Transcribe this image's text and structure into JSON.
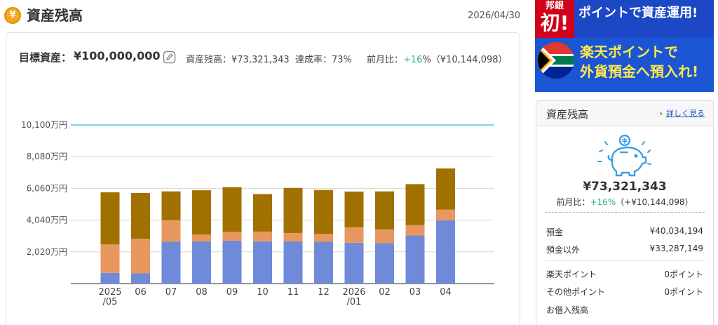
{
  "header": {
    "title": "資産残高",
    "date": "2026/04/30",
    "icon": "yen-coin-icon"
  },
  "summary": {
    "target_label": "目標資産：",
    "target_value": "¥100,000,000",
    "balance_text": "資産残高：¥73,321,343",
    "rate_text": "達成率：73%",
    "change_prefix": "前月比：",
    "change_percent": "+16",
    "change_suffix": "%（¥10,144,098）"
  },
  "banner": {
    "badge_small": "邦銀",
    "badge_big": "初!",
    "line1": "ポイントで資産運用!",
    "line2": "楽天ポイントで",
    "line3": "外貨預金へ預入れ!"
  },
  "side": {
    "title": "資産残高",
    "detail_link": "詳しく見る",
    "total": "¥73,321,343",
    "change_prefix": "前月比：",
    "change_percent": "+16%",
    "change_suffix": "（+¥10,144,098）",
    "rows": [
      {
        "label": "預金",
        "value": "¥40,034,194"
      },
      {
        "label": "預金以外",
        "value": "¥33,287,149"
      },
      {
        "label": "楽天ポイント",
        "value": "0ポイント"
      },
      {
        "label": "その他ポイント",
        "value": "0ポイント"
      },
      {
        "label": "お借入残高",
        "value": ""
      }
    ]
  },
  "colors": {
    "accent": "#f5a623",
    "positive": "#2bb673",
    "link": "#1a57c6",
    "target_line": "#7dd3ea"
  },
  "chart_data": {
    "type": "bar",
    "stacked": true,
    "categories": [
      "2025\n/05",
      "06",
      "07",
      "08",
      "09",
      "10",
      "11",
      "12",
      "2026\n/01",
      "02",
      "03",
      "04"
    ],
    "series": [
      {
        "color": "#6f8ad8",
        "values": [
          680,
          650,
          2660,
          2680,
          2730,
          2690,
          2680,
          2660,
          2600,
          2580,
          3060,
          4030
        ]
      },
      {
        "color": "#e8975f",
        "values": [
          1810,
          2210,
          1380,
          450,
          560,
          620,
          540,
          500,
          990,
          870,
          660,
          680
        ]
      },
      {
        "color": "#a07000",
        "values": [
          3320,
          2910,
          1830,
          2810,
          2850,
          2390,
          2870,
          2800,
          2270,
          2420,
          2610,
          2620
        ]
      }
    ],
    "yticks": [
      "2,020万円",
      "4,040万円",
      "6,060万円",
      "8,080万円",
      "10,100万円"
    ],
    "ytick_values": [
      2020,
      4040,
      6060,
      8080,
      10100
    ],
    "ylim": [
      0,
      10100
    ],
    "target_line": 10100,
    "grid": true
  }
}
